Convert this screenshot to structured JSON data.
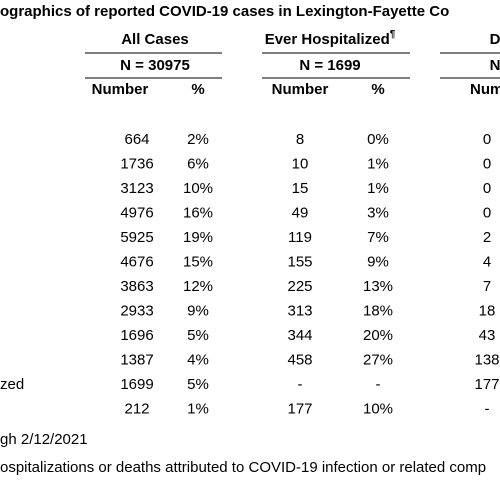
{
  "header": {
    "title": "ographics of reported COVID-19 cases in Lexington-Fayette Co"
  },
  "groups": [
    {
      "title": "All Cases",
      "n": "N = 30975"
    },
    {
      "title": "Ever Hospitalized",
      "mark": "¶",
      "n": "N = 1699"
    },
    {
      "title": "D",
      "n": "N"
    }
  ],
  "subheaders": [
    "Number",
    "%",
    "Number",
    "%",
    "Numb"
  ],
  "rows": [
    {
      "cells": [
        "664",
        "2%",
        "8",
        "0%",
        "0"
      ]
    },
    {
      "cells": [
        "1736",
        "6%",
        "10",
        "1%",
        "0"
      ]
    },
    {
      "cells": [
        "3123",
        "10%",
        "15",
        "1%",
        "0"
      ]
    },
    {
      "cells": [
        "4976",
        "16%",
        "49",
        "3%",
        "0"
      ]
    },
    {
      "cells": [
        "5925",
        "19%",
        "119",
        "7%",
        "2"
      ]
    },
    {
      "cells": [
        "4676",
        "15%",
        "155",
        "9%",
        "4"
      ]
    },
    {
      "cells": [
        "3863",
        "12%",
        "225",
        "13%",
        "7"
      ]
    },
    {
      "cells": [
        "2933",
        "9%",
        "313",
        "18%",
        "18"
      ]
    },
    {
      "cells": [
        "1696",
        "5%",
        "344",
        "20%",
        "43"
      ]
    },
    {
      "cells": [
        "1387",
        "4%",
        "458",
        "27%",
        "138"
      ]
    },
    {
      "label": "zed",
      "cells": [
        "1699",
        "5%",
        "-",
        "-",
        "177"
      ]
    },
    {
      "cells": [
        "212",
        "1%",
        "177",
        "10%",
        "-"
      ]
    }
  ],
  "footnotes": [
    "gh 2/12/2021",
    "ospitalizations or deaths attributed to COVID-19 infection or related comp"
  ]
}
